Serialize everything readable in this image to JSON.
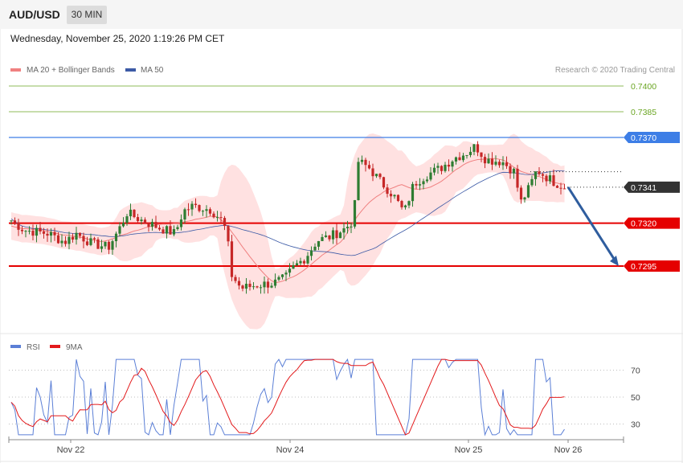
{
  "header": {
    "symbol": "AUD/USD",
    "timeframe": "30 MIN",
    "datetime": "Wednesday, November 25, 2020 1:19:26 PM CET"
  },
  "legend": {
    "ma20_label": "MA 20 + Bollinger Bands",
    "ma50_label": "MA 50",
    "credit": "Research © 2020 Trading Central",
    "rsi_label": "RSI",
    "rsi_ma_label": "9MA"
  },
  "colors": {
    "up_candle": "#2e7d32",
    "down_candle": "#c62828",
    "ma20": "#f08080",
    "ma50": "#3c5aa6",
    "bollinger_fill": "#ffdcdc",
    "resistance": "#3d7ee6",
    "support": "#e50000",
    "target": "#6aa522",
    "arrow": "#2f5d9e",
    "rsi": "#5b7fd6",
    "rsi_ma": "#e31a1c"
  },
  "chart_data": [
    {
      "type": "candlestick",
      "title": "AUD/USD",
      "ylim": [
        0.7266,
        0.741
      ],
      "x_ticks": [
        "Nov 22",
        "Nov 24",
        "Nov 25",
        "Nov 26"
      ],
      "levels": [
        {
          "label": "0.7400",
          "value": 0.74,
          "kind": "target"
        },
        {
          "label": "0.7385",
          "value": 0.7385,
          "kind": "target"
        },
        {
          "label": "0.7370",
          "value": 0.737,
          "kind": "resistance"
        },
        {
          "label": "0.7341",
          "value": 0.7341,
          "kind": "current"
        },
        {
          "label": "0.7320",
          "value": 0.732,
          "kind": "support"
        },
        {
          "label": "0.7295",
          "value": 0.7295,
          "kind": "support"
        }
      ],
      "forecast_arrow": {
        "from": 0.7341,
        "to": 0.7295
      },
      "series": [
        {
          "name": "MA 20 + Bollinger Bands"
        },
        {
          "name": "MA 50"
        }
      ]
    },
    {
      "type": "line",
      "ylim": [
        20,
        80
      ],
      "y_ticks": [
        "70",
        "50",
        "30"
      ],
      "series": [
        {
          "name": "RSI"
        },
        {
          "name": "9MA"
        }
      ]
    }
  ]
}
